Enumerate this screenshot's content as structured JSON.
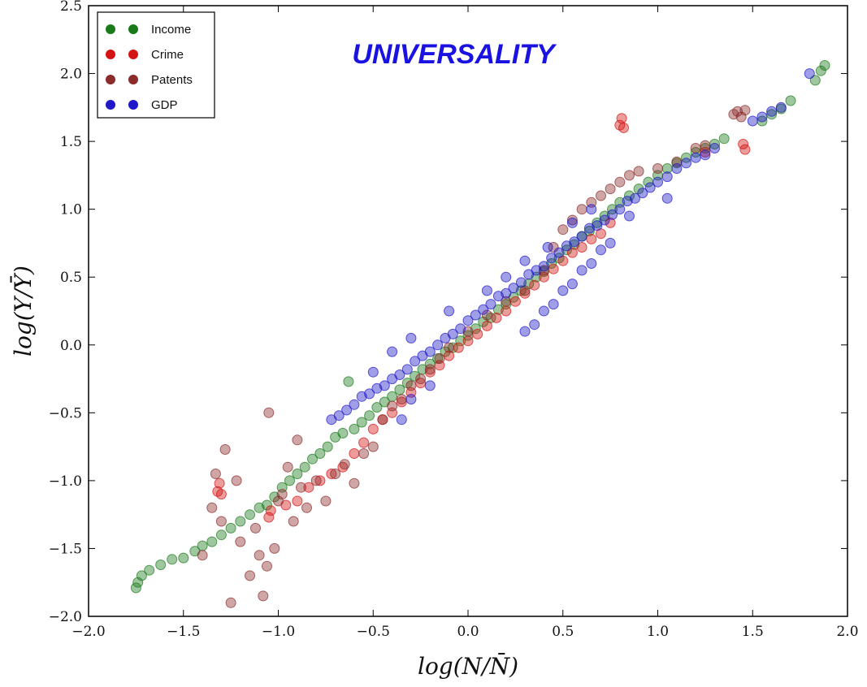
{
  "chart_data": {
    "type": "scatter",
    "title": "UNIVERSALITY",
    "xlabel": "log(N/N̄)",
    "ylabel": "log(Y/Ȳ)",
    "xlim": [
      -2.0,
      2.0
    ],
    "ylim": [
      -2.0,
      2.5
    ],
    "x_ticks": [
      "−2.0",
      "−1.5",
      "−1.0",
      "−0.5",
      "0.0",
      "0.5",
      "1.0",
      "1.5",
      "2.0"
    ],
    "y_ticks": [
      "−2.0",
      "−1.5",
      "−1.0",
      "−0.5",
      "0.0",
      "0.5",
      "1.0",
      "1.5",
      "2.0",
      "2.5"
    ],
    "grid": false,
    "legend_position": "top-left",
    "series": [
      {
        "name": "Income",
        "color": "#1a7a1a",
        "points": [
          [
            -1.75,
            -1.79
          ],
          [
            -1.74,
            -1.75
          ],
          [
            -1.72,
            -1.7
          ],
          [
            -1.68,
            -1.66
          ],
          [
            -1.62,
            -1.62
          ],
          [
            -1.56,
            -1.58
          ],
          [
            -1.5,
            -1.57
          ],
          [
            -1.44,
            -1.52
          ],
          [
            -1.4,
            -1.48
          ],
          [
            -1.35,
            -1.45
          ],
          [
            -1.3,
            -1.4
          ],
          [
            -1.25,
            -1.35
          ],
          [
            -1.2,
            -1.3
          ],
          [
            -1.15,
            -1.25
          ],
          [
            -1.1,
            -1.2
          ],
          [
            -1.06,
            -1.18
          ],
          [
            -1.02,
            -1.12
          ],
          [
            -0.98,
            -1.05
          ],
          [
            -0.94,
            -1.0
          ],
          [
            -0.9,
            -0.95
          ],
          [
            -0.86,
            -0.9
          ],
          [
            -0.82,
            -0.84
          ],
          [
            -0.78,
            -0.8
          ],
          [
            -0.74,
            -0.75
          ],
          [
            -0.7,
            -0.68
          ],
          [
            -0.66,
            -0.65
          ],
          [
            -0.63,
            -0.27
          ],
          [
            -0.6,
            -0.62
          ],
          [
            -0.56,
            -0.57
          ],
          [
            -0.52,
            -0.52
          ],
          [
            -0.48,
            -0.46
          ],
          [
            -0.44,
            -0.42
          ],
          [
            -0.4,
            -0.38
          ],
          [
            -0.36,
            -0.33
          ],
          [
            -0.32,
            -0.28
          ],
          [
            -0.28,
            -0.23
          ],
          [
            -0.24,
            -0.18
          ],
          [
            -0.2,
            -0.14
          ],
          [
            -0.16,
            -0.1
          ],
          [
            -0.12,
            -0.05
          ],
          [
            -0.08,
            -0.02
          ],
          [
            -0.04,
            0.03
          ],
          [
            0.0,
            0.07
          ],
          [
            0.04,
            0.12
          ],
          [
            0.08,
            0.17
          ],
          [
            0.12,
            0.2
          ],
          [
            0.16,
            0.26
          ],
          [
            0.2,
            0.3
          ],
          [
            0.24,
            0.35
          ],
          [
            0.28,
            0.4
          ],
          [
            0.32,
            0.45
          ],
          [
            0.36,
            0.5
          ],
          [
            0.4,
            0.54
          ],
          [
            0.44,
            0.6
          ],
          [
            0.48,
            0.64
          ],
          [
            0.52,
            0.7
          ],
          [
            0.56,
            0.74
          ],
          [
            0.6,
            0.8
          ],
          [
            0.64,
            0.84
          ],
          [
            0.68,
            0.9
          ],
          [
            0.72,
            0.95
          ],
          [
            0.76,
            1.0
          ],
          [
            0.8,
            1.05
          ],
          [
            0.85,
            1.1
          ],
          [
            0.9,
            1.15
          ],
          [
            0.95,
            1.2
          ],
          [
            1.0,
            1.25
          ],
          [
            1.05,
            1.3
          ],
          [
            1.1,
            1.34
          ],
          [
            1.15,
            1.38
          ],
          [
            1.2,
            1.42
          ],
          [
            1.25,
            1.45
          ],
          [
            1.3,
            1.48
          ],
          [
            1.35,
            1.52
          ],
          [
            1.55,
            1.65
          ],
          [
            1.6,
            1.7
          ],
          [
            1.65,
            1.74
          ],
          [
            1.7,
            1.8
          ],
          [
            1.83,
            1.95
          ],
          [
            1.86,
            2.02
          ],
          [
            1.88,
            2.06
          ]
        ]
      },
      {
        "name": "Crime",
        "color": "#d41414",
        "points": [
          [
            -1.32,
            -1.08
          ],
          [
            -1.31,
            -1.02
          ],
          [
            -1.3,
            -1.1
          ],
          [
            -1.05,
            -1.27
          ],
          [
            -1.04,
            -1.22
          ],
          [
            -0.96,
            -1.18
          ],
          [
            -0.9,
            -1.15
          ],
          [
            -0.84,
            -1.05
          ],
          [
            -0.78,
            -1.0
          ],
          [
            -0.72,
            -0.95
          ],
          [
            -0.66,
            -0.9
          ],
          [
            -0.6,
            -0.8
          ],
          [
            -0.55,
            -0.72
          ],
          [
            -0.5,
            -0.62
          ],
          [
            -0.45,
            -0.55
          ],
          [
            -0.4,
            -0.5
          ],
          [
            -0.35,
            -0.42
          ],
          [
            -0.3,
            -0.35
          ],
          [
            -0.25,
            -0.28
          ],
          [
            -0.2,
            -0.2
          ],
          [
            -0.15,
            -0.15
          ],
          [
            -0.1,
            -0.08
          ],
          [
            -0.05,
            -0.02
          ],
          [
            0.0,
            0.03
          ],
          [
            0.05,
            0.08
          ],
          [
            0.1,
            0.14
          ],
          [
            0.15,
            0.2
          ],
          [
            0.2,
            0.25
          ],
          [
            0.25,
            0.32
          ],
          [
            0.3,
            0.38
          ],
          [
            0.35,
            0.44
          ],
          [
            0.4,
            0.5
          ],
          [
            0.45,
            0.56
          ],
          [
            0.5,
            0.62
          ],
          [
            0.55,
            0.68
          ],
          [
            0.6,
            0.72
          ],
          [
            0.65,
            0.78
          ],
          [
            0.7,
            0.82
          ],
          [
            0.75,
            0.9
          ],
          [
            0.8,
            1.62
          ],
          [
            0.81,
            1.67
          ],
          [
            0.82,
            1.6
          ],
          [
            1.25,
            1.42
          ],
          [
            1.45,
            1.48
          ],
          [
            1.46,
            1.44
          ]
        ]
      },
      {
        "name": "Patents",
        "color": "#8b2b2b",
        "points": [
          [
            -1.4,
            -1.55
          ],
          [
            -1.35,
            -1.2
          ],
          [
            -1.33,
            -0.95
          ],
          [
            -1.3,
            -1.3
          ],
          [
            -1.28,
            -0.77
          ],
          [
            -1.25,
            -1.9
          ],
          [
            -1.22,
            -1.0
          ],
          [
            -1.2,
            -1.45
          ],
          [
            -1.15,
            -1.7
          ],
          [
            -1.12,
            -1.35
          ],
          [
            -1.1,
            -1.55
          ],
          [
            -1.08,
            -1.85
          ],
          [
            -1.06,
            -1.63
          ],
          [
            -1.05,
            -0.5
          ],
          [
            -1.02,
            -1.5
          ],
          [
            -1.0,
            -1.15
          ],
          [
            -0.98,
            -1.1
          ],
          [
            -0.95,
            -0.9
          ],
          [
            -0.92,
            -1.3
          ],
          [
            -0.9,
            -0.7
          ],
          [
            -0.88,
            -1.05
          ],
          [
            -0.85,
            -1.2
          ],
          [
            -0.8,
            -1.0
          ],
          [
            -0.75,
            -1.15
          ],
          [
            -0.7,
            -0.95
          ],
          [
            -0.65,
            -0.88
          ],
          [
            -0.6,
            -1.02
          ],
          [
            -0.55,
            -0.8
          ],
          [
            -0.5,
            -0.75
          ],
          [
            -0.45,
            -0.55
          ],
          [
            -0.4,
            -0.45
          ],
          [
            -0.35,
            -0.4
          ],
          [
            -0.3,
            -0.3
          ],
          [
            -0.25,
            -0.25
          ],
          [
            -0.2,
            -0.18
          ],
          [
            -0.15,
            -0.1
          ],
          [
            -0.1,
            -0.02
          ],
          [
            0.0,
            0.1
          ],
          [
            0.1,
            0.22
          ],
          [
            0.2,
            0.32
          ],
          [
            0.3,
            0.4
          ],
          [
            0.4,
            0.55
          ],
          [
            0.45,
            0.72
          ],
          [
            0.5,
            0.85
          ],
          [
            0.55,
            0.92
          ],
          [
            0.6,
            1.0
          ],
          [
            0.65,
            1.05
          ],
          [
            0.7,
            1.1
          ],
          [
            0.75,
            1.15
          ],
          [
            0.8,
            1.2
          ],
          [
            0.85,
            1.25
          ],
          [
            0.9,
            1.28
          ],
          [
            1.0,
            1.3
          ],
          [
            1.1,
            1.35
          ],
          [
            1.2,
            1.45
          ],
          [
            1.25,
            1.47
          ],
          [
            1.4,
            1.7
          ],
          [
            1.42,
            1.72
          ],
          [
            1.44,
            1.68
          ],
          [
            1.46,
            1.73
          ]
        ]
      },
      {
        "name": "GDP",
        "color": "#1e18c8",
        "points": [
          [
            -0.72,
            -0.55
          ],
          [
            -0.68,
            -0.52
          ],
          [
            -0.64,
            -0.48
          ],
          [
            -0.6,
            -0.44
          ],
          [
            -0.56,
            -0.38
          ],
          [
            -0.52,
            -0.36
          ],
          [
            -0.48,
            -0.32
          ],
          [
            -0.44,
            -0.3
          ],
          [
            -0.4,
            -0.25
          ],
          [
            -0.36,
            -0.22
          ],
          [
            -0.32,
            -0.18
          ],
          [
            -0.28,
            -0.12
          ],
          [
            -0.24,
            -0.08
          ],
          [
            -0.2,
            -0.05
          ],
          [
            -0.16,
            0.0
          ],
          [
            -0.12,
            0.05
          ],
          [
            -0.08,
            0.08
          ],
          [
            -0.04,
            0.12
          ],
          [
            0.0,
            0.18
          ],
          [
            0.04,
            0.22
          ],
          [
            0.08,
            0.26
          ],
          [
            0.12,
            0.3
          ],
          [
            0.16,
            0.36
          ],
          [
            0.2,
            0.38
          ],
          [
            0.24,
            0.42
          ],
          [
            0.28,
            0.46
          ],
          [
            0.32,
            0.52
          ],
          [
            0.36,
            0.55
          ],
          [
            0.4,
            0.58
          ],
          [
            0.44,
            0.64
          ],
          [
            0.48,
            0.68
          ],
          [
            0.52,
            0.73
          ],
          [
            0.56,
            0.76
          ],
          [
            0.6,
            0.8
          ],
          [
            0.64,
            0.86
          ],
          [
            0.68,
            0.88
          ],
          [
            0.72,
            0.92
          ],
          [
            0.76,
            0.96
          ],
          [
            0.8,
            1.0
          ],
          [
            0.84,
            1.06
          ],
          [
            0.88,
            1.08
          ],
          [
            0.92,
            1.12
          ],
          [
            0.96,
            1.16
          ],
          [
            1.0,
            1.2
          ],
          [
            1.05,
            1.24
          ],
          [
            1.1,
            1.3
          ],
          [
            1.15,
            1.34
          ],
          [
            1.2,
            1.38
          ],
          [
            1.25,
            1.4
          ],
          [
            1.3,
            1.45
          ],
          [
            1.5,
            1.65
          ],
          [
            1.55,
            1.68
          ],
          [
            1.6,
            1.72
          ],
          [
            1.65,
            1.75
          ],
          [
            1.8,
            2.0
          ],
          [
            -0.35,
            -0.55
          ],
          [
            -0.3,
            -0.4
          ],
          [
            -0.2,
            -0.3
          ],
          [
            0.3,
            0.1
          ],
          [
            0.35,
            0.15
          ],
          [
            0.4,
            0.25
          ],
          [
            0.45,
            0.3
          ],
          [
            0.5,
            0.4
          ],
          [
            0.55,
            0.45
          ],
          [
            0.6,
            0.55
          ],
          [
            0.65,
            0.6
          ],
          [
            0.7,
            0.7
          ],
          [
            0.75,
            0.75
          ],
          [
            0.85,
            0.95
          ],
          [
            1.05,
            1.08
          ],
          [
            -0.5,
            -0.2
          ],
          [
            -0.4,
            -0.05
          ],
          [
            -0.3,
            0.05
          ],
          [
            -0.1,
            0.25
          ],
          [
            0.1,
            0.4
          ],
          [
            0.2,
            0.5
          ],
          [
            0.3,
            0.62
          ],
          [
            0.42,
            0.72
          ],
          [
            0.55,
            0.9
          ],
          [
            0.65,
            1.0
          ]
        ]
      }
    ]
  }
}
